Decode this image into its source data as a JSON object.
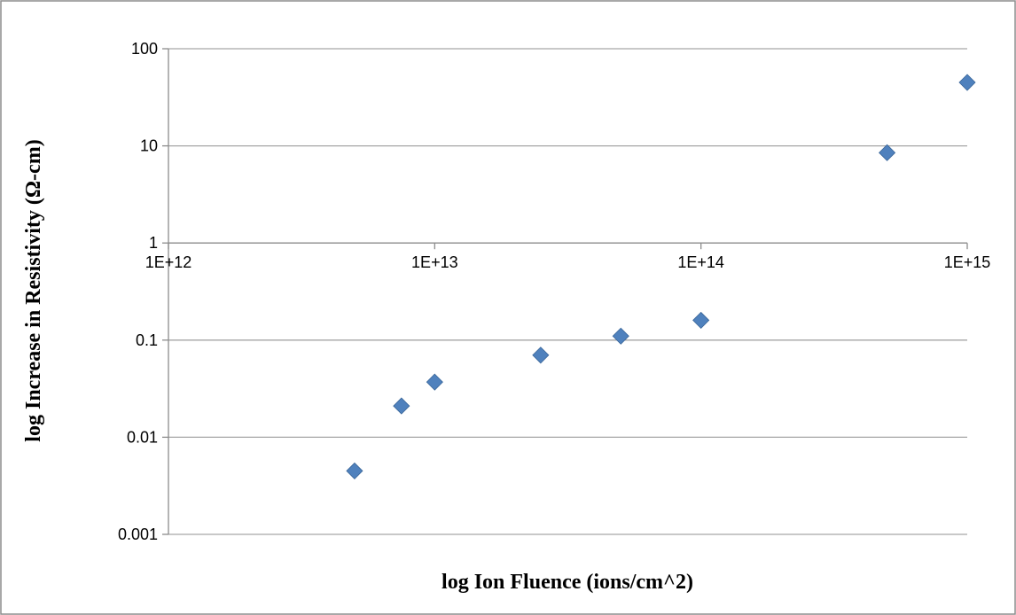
{
  "chart_data": {
    "type": "scatter",
    "title": "",
    "xlabel": "log Ion Fluence (ions/cm^2)",
    "ylabel": "log Increase in Resistivity (Ω-cm)",
    "x_scale": "log",
    "y_scale": "log",
    "xlim": [
      1000000000000.0,
      1000000000000000.0
    ],
    "ylim": [
      0.001,
      100
    ],
    "x_ticks": [
      1000000000000.0,
      10000000000000.0,
      100000000000000.0,
      1000000000000000.0
    ],
    "x_tick_labels": [
      "1E+12",
      "1E+13",
      "1E+14",
      "1E+15"
    ],
    "y_ticks": [
      0.001,
      0.01,
      0.1,
      1,
      10,
      100
    ],
    "y_tick_labels": [
      "0.001",
      "0.01",
      "0.1",
      "1",
      "10",
      "100"
    ],
    "grid": "horizontal",
    "legend": "none",
    "marker": "diamond",
    "marker_color": "#4f81bd",
    "frame_color": "#8c8c8c",
    "grid_color": "#a6a6a6",
    "series": [
      {
        "x": [
          5000000000000.0,
          7500000000000.0,
          10000000000000.0,
          25000000000000.0,
          50000000000000.0,
          100000000000000.0,
          500000000000000.0,
          1000000000000000.0
        ],
        "y": [
          0.0045,
          0.021,
          0.037,
          0.07,
          0.11,
          0.16,
          8.5,
          45
        ]
      }
    ]
  }
}
